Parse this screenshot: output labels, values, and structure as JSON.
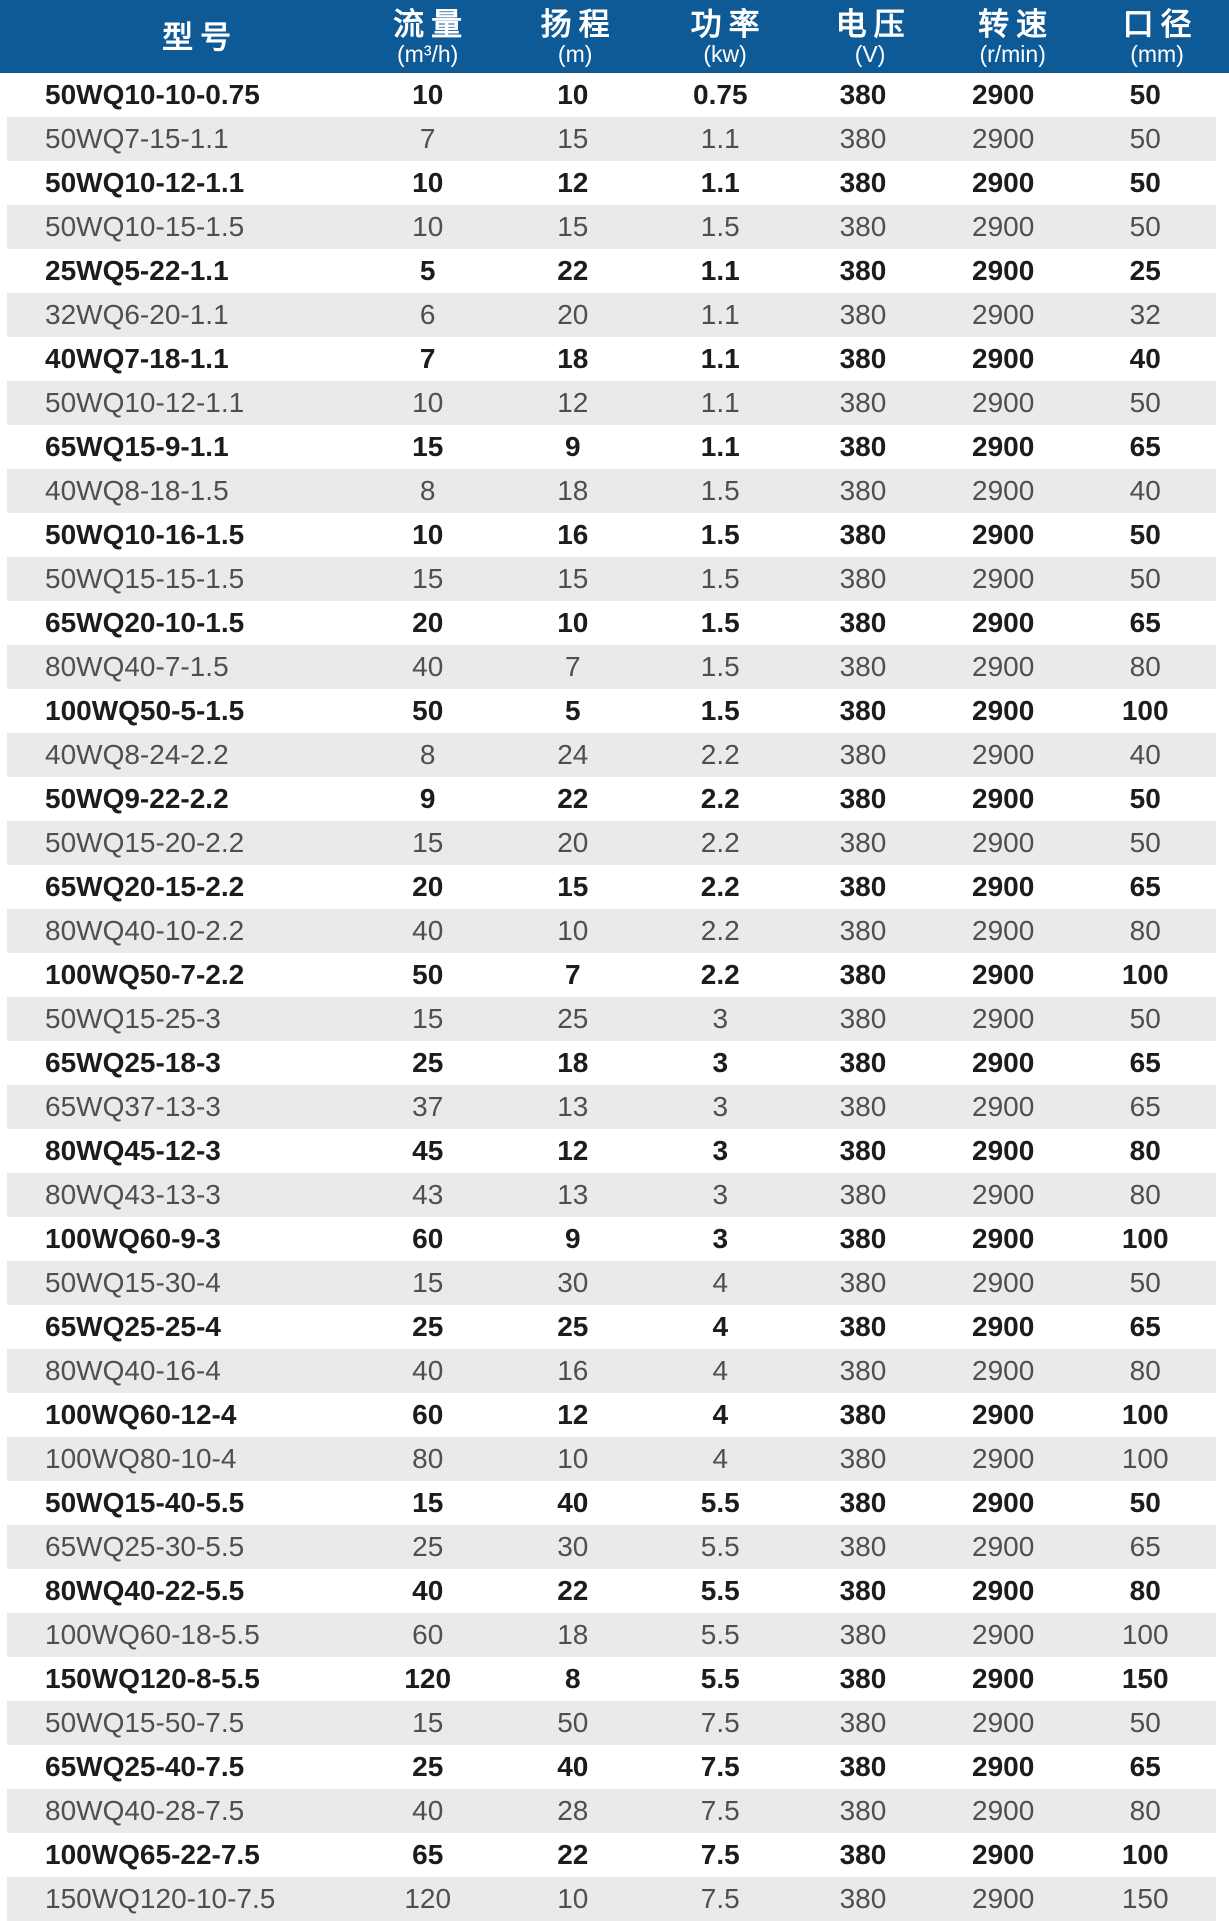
{
  "colors": {
    "header_bg": "#0e5a96",
    "header_text": "#ffffff",
    "row_main_bg": "#ffffff",
    "row_alt_bg": "#eaeaea",
    "row_main_text": "#1c1c1c",
    "row_alt_text": "#4f4f4f"
  },
  "table": {
    "columns": [
      {
        "label": "型号",
        "unit": ""
      },
      {
        "label": "流量",
        "unit": "(m³/h)"
      },
      {
        "label": "扬程",
        "unit": "(m)"
      },
      {
        "label": "功率",
        "unit": "(kw)"
      },
      {
        "label": "电压",
        "unit": "(V)"
      },
      {
        "label": "转速",
        "unit": "(r/min)"
      },
      {
        "label": "口径",
        "unit": "(mm)"
      }
    ],
    "rows": [
      [
        "50WQ10-10-0.75",
        "10",
        "10",
        "0.75",
        "380",
        "2900",
        "50"
      ],
      [
        "50WQ7-15-1.1",
        "7",
        "15",
        "1.1",
        "380",
        "2900",
        "50"
      ],
      [
        "50WQ10-12-1.1",
        "10",
        "12",
        "1.1",
        "380",
        "2900",
        "50"
      ],
      [
        "50WQ10-15-1.5",
        "10",
        "15",
        "1.5",
        "380",
        "2900",
        "50"
      ],
      [
        "25WQ5-22-1.1",
        "5",
        "22",
        "1.1",
        "380",
        "2900",
        "25"
      ],
      [
        "32WQ6-20-1.1",
        "6",
        "20",
        "1.1",
        "380",
        "2900",
        "32"
      ],
      [
        "40WQ7-18-1.1",
        "7",
        "18",
        "1.1",
        "380",
        "2900",
        "40"
      ],
      [
        "50WQ10-12-1.1",
        "10",
        "12",
        "1.1",
        "380",
        "2900",
        "50"
      ],
      [
        "65WQ15-9-1.1",
        "15",
        "9",
        "1.1",
        "380",
        "2900",
        "65"
      ],
      [
        "40WQ8-18-1.5",
        "8",
        "18",
        "1.5",
        "380",
        "2900",
        "40"
      ],
      [
        "50WQ10-16-1.5",
        "10",
        "16",
        "1.5",
        "380",
        "2900",
        "50"
      ],
      [
        "50WQ15-15-1.5",
        "15",
        "15",
        "1.5",
        "380",
        "2900",
        "50"
      ],
      [
        "65WQ20-10-1.5",
        "20",
        "10",
        "1.5",
        "380",
        "2900",
        "65"
      ],
      [
        "80WQ40-7-1.5",
        "40",
        "7",
        "1.5",
        "380",
        "2900",
        "80"
      ],
      [
        "100WQ50-5-1.5",
        "50",
        "5",
        "1.5",
        "380",
        "2900",
        "100"
      ],
      [
        "40WQ8-24-2.2",
        "8",
        "24",
        "2.2",
        "380",
        "2900",
        "40"
      ],
      [
        "50WQ9-22-2.2",
        "9",
        "22",
        "2.2",
        "380",
        "2900",
        "50"
      ],
      [
        "50WQ15-20-2.2",
        "15",
        "20",
        "2.2",
        "380",
        "2900",
        "50"
      ],
      [
        "65WQ20-15-2.2",
        "20",
        "15",
        "2.2",
        "380",
        "2900",
        "65"
      ],
      [
        "80WQ40-10-2.2",
        "40",
        "10",
        "2.2",
        "380",
        "2900",
        "80"
      ],
      [
        "100WQ50-7-2.2",
        "50",
        "7",
        "2.2",
        "380",
        "2900",
        "100"
      ],
      [
        "50WQ15-25-3",
        "15",
        "25",
        "3",
        "380",
        "2900",
        "50"
      ],
      [
        "65WQ25-18-3",
        "25",
        "18",
        "3",
        "380",
        "2900",
        "65"
      ],
      [
        "65WQ37-13-3",
        "37",
        "13",
        "3",
        "380",
        "2900",
        "65"
      ],
      [
        "80WQ45-12-3",
        "45",
        "12",
        "3",
        "380",
        "2900",
        "80"
      ],
      [
        "80WQ43-13-3",
        "43",
        "13",
        "3",
        "380",
        "2900",
        "80"
      ],
      [
        "100WQ60-9-3",
        "60",
        "9",
        "3",
        "380",
        "2900",
        "100"
      ],
      [
        "50WQ15-30-4",
        "15",
        "30",
        "4",
        "380",
        "2900",
        "50"
      ],
      [
        "65WQ25-25-4",
        "25",
        "25",
        "4",
        "380",
        "2900",
        "65"
      ],
      [
        "80WQ40-16-4",
        "40",
        "16",
        "4",
        "380",
        "2900",
        "80"
      ],
      [
        "100WQ60-12-4",
        "60",
        "12",
        "4",
        "380",
        "2900",
        "100"
      ],
      [
        "100WQ80-10-4",
        "80",
        "10",
        "4",
        "380",
        "2900",
        "100"
      ],
      [
        "50WQ15-40-5.5",
        "15",
        "40",
        "5.5",
        "380",
        "2900",
        "50"
      ],
      [
        "65WQ25-30-5.5",
        "25",
        "30",
        "5.5",
        "380",
        "2900",
        "65"
      ],
      [
        "80WQ40-22-5.5",
        "40",
        "22",
        "5.5",
        "380",
        "2900",
        "80"
      ],
      [
        "100WQ60-18-5.5",
        "60",
        "18",
        "5.5",
        "380",
        "2900",
        "100"
      ],
      [
        "150WQ120-8-5.5",
        "120",
        "8",
        "5.5",
        "380",
        "2900",
        "150"
      ],
      [
        "50WQ15-50-7.5",
        "15",
        "50",
        "7.5",
        "380",
        "2900",
        "50"
      ],
      [
        "65WQ25-40-7.5",
        "25",
        "40",
        "7.5",
        "380",
        "2900",
        "65"
      ],
      [
        "80WQ40-28-7.5",
        "40",
        "28",
        "7.5",
        "380",
        "2900",
        "80"
      ],
      [
        "100WQ65-22-7.5",
        "65",
        "22",
        "7.5",
        "380",
        "2900",
        "100"
      ],
      [
        "150WQ120-10-7.5",
        "120",
        "10",
        "7.5",
        "380",
        "2900",
        "150"
      ]
    ]
  }
}
